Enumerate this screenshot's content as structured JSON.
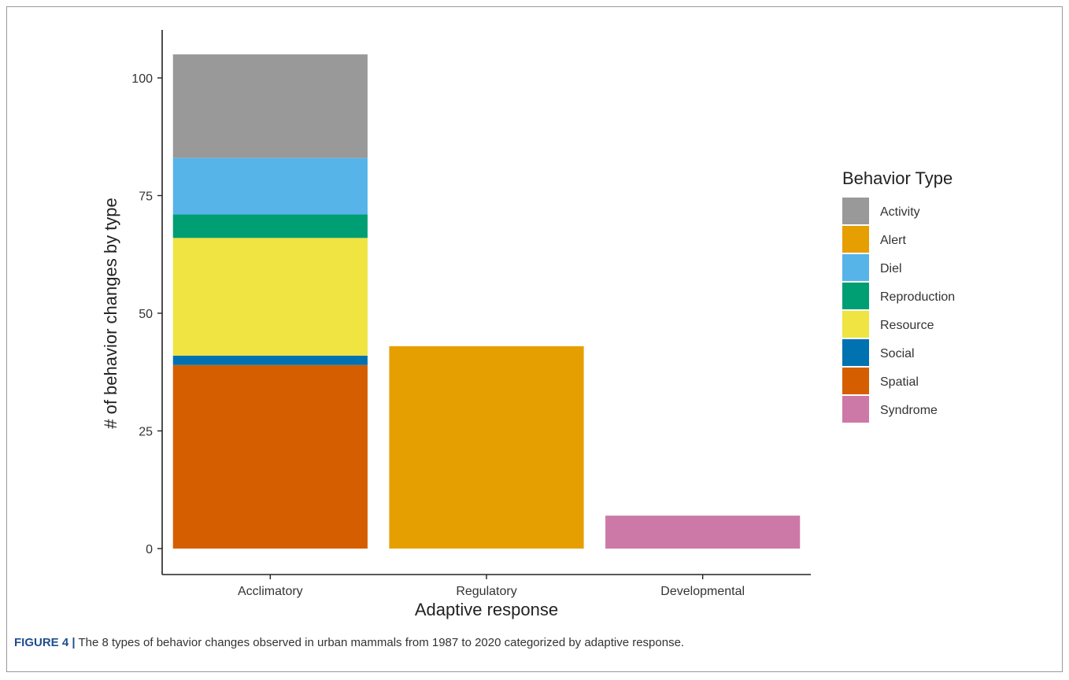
{
  "chart_data": {
    "type": "bar",
    "stacked": true,
    "categories": [
      "Acclimatory",
      "Regulatory",
      "Developmental"
    ],
    "series": [
      {
        "name": "Activity",
        "color": "#999999",
        "values": [
          22,
          0,
          0
        ]
      },
      {
        "name": "Alert",
        "color": "#E69F00",
        "values": [
          0,
          43,
          0
        ]
      },
      {
        "name": "Diel",
        "color": "#56B4E9",
        "values": [
          12,
          0,
          0
        ]
      },
      {
        "name": "Reproduction",
        "color": "#009E73",
        "values": [
          5,
          0,
          0
        ]
      },
      {
        "name": "Resource",
        "color": "#F0E442",
        "values": [
          25,
          0,
          0
        ]
      },
      {
        "name": "Social",
        "color": "#0072B2",
        "values": [
          2,
          0,
          0
        ]
      },
      {
        "name": "Spatial",
        "color": "#D55E00",
        "values": [
          39,
          0,
          0
        ]
      },
      {
        "name": "Syndrome",
        "color": "#CC79A7",
        "values": [
          0,
          0,
          7
        ]
      }
    ],
    "stack_order_bottom_to_top": [
      "Spatial",
      "Social",
      "Resource",
      "Reproduction",
      "Diel",
      "Alert",
      "Activity",
      "Syndrome"
    ],
    "xlabel": "Adaptive response",
    "ylabel": "# of behavior changes by type",
    "ylim": [
      0,
      110
    ],
    "yticks": [
      0,
      25,
      50,
      75,
      100
    ],
    "grid": false,
    "legend": {
      "title": "Behavior Type",
      "position": "right"
    }
  },
  "caption": {
    "label": "FIGURE 4",
    "separator": "|",
    "text": "The 8 types of behavior changes observed in urban mammals from 1987 to 2020 categorized by adaptive response."
  }
}
